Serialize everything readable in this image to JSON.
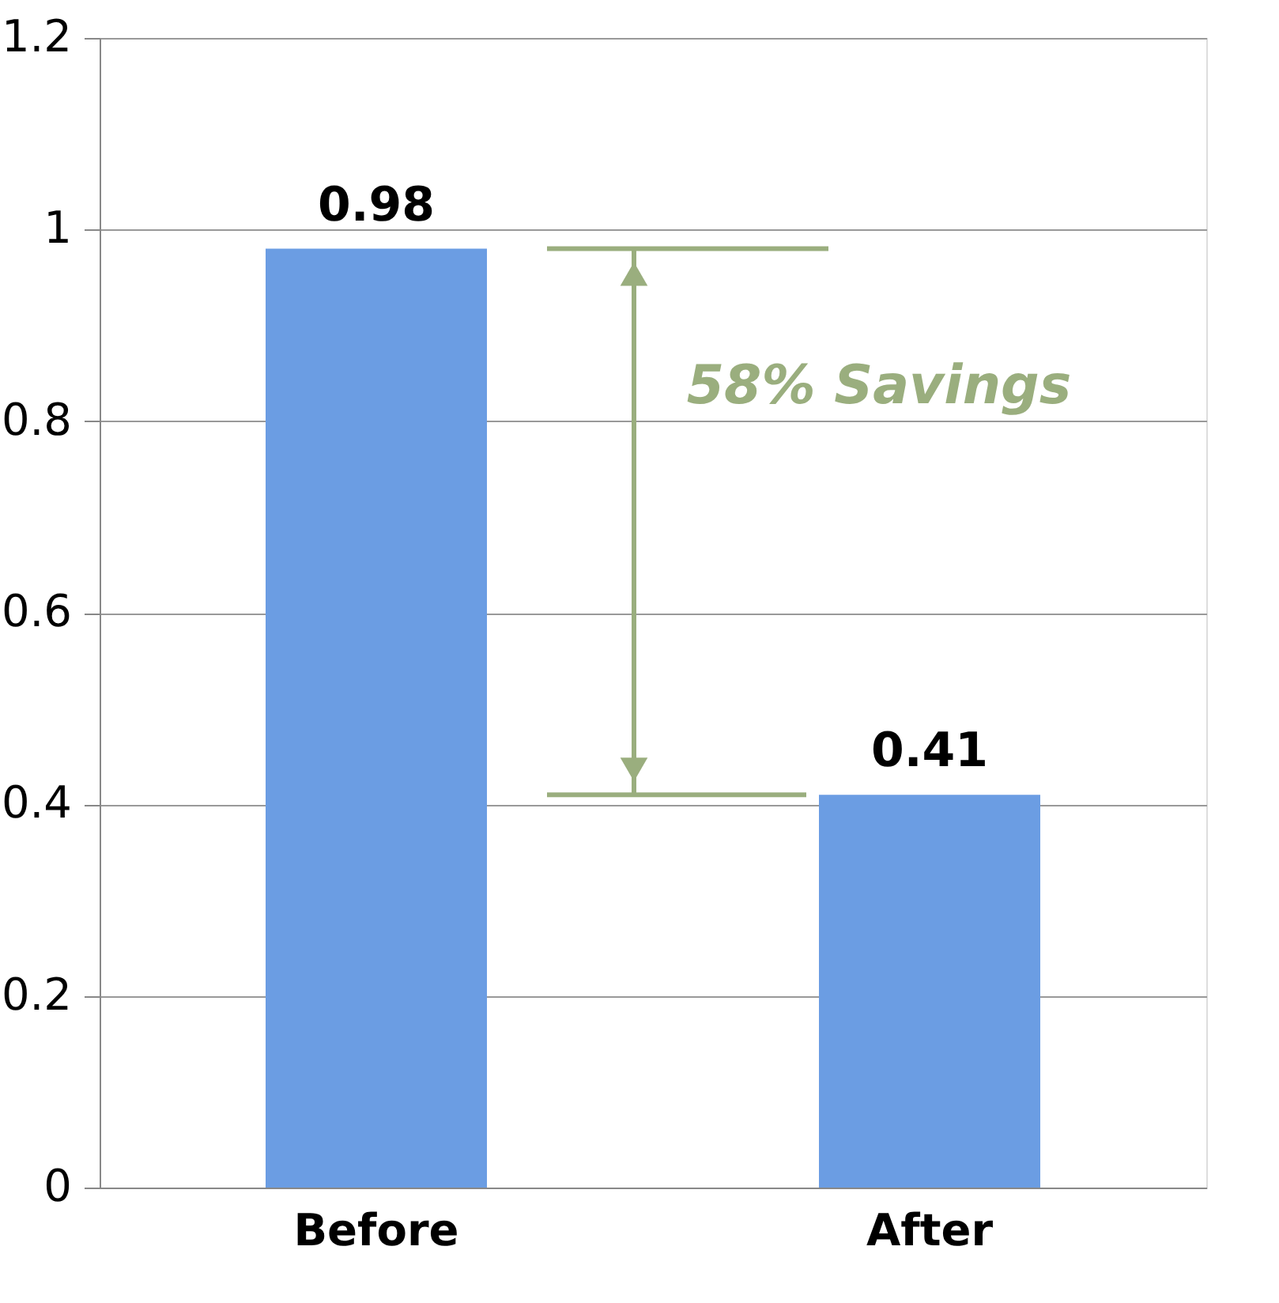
{
  "chart_data": {
    "type": "bar",
    "categories": [
      "Before",
      "After"
    ],
    "values": [
      0.98,
      0.41
    ],
    "color": "#6b9de3",
    "ylim": [
      0,
      1.2
    ],
    "yticks": [
      0,
      0.2,
      0.4,
      0.6,
      0.8,
      1,
      1.2
    ],
    "grid": "y",
    "data_labels": true,
    "legend": false,
    "annotations": [
      "58% Savings"
    ]
  }
}
